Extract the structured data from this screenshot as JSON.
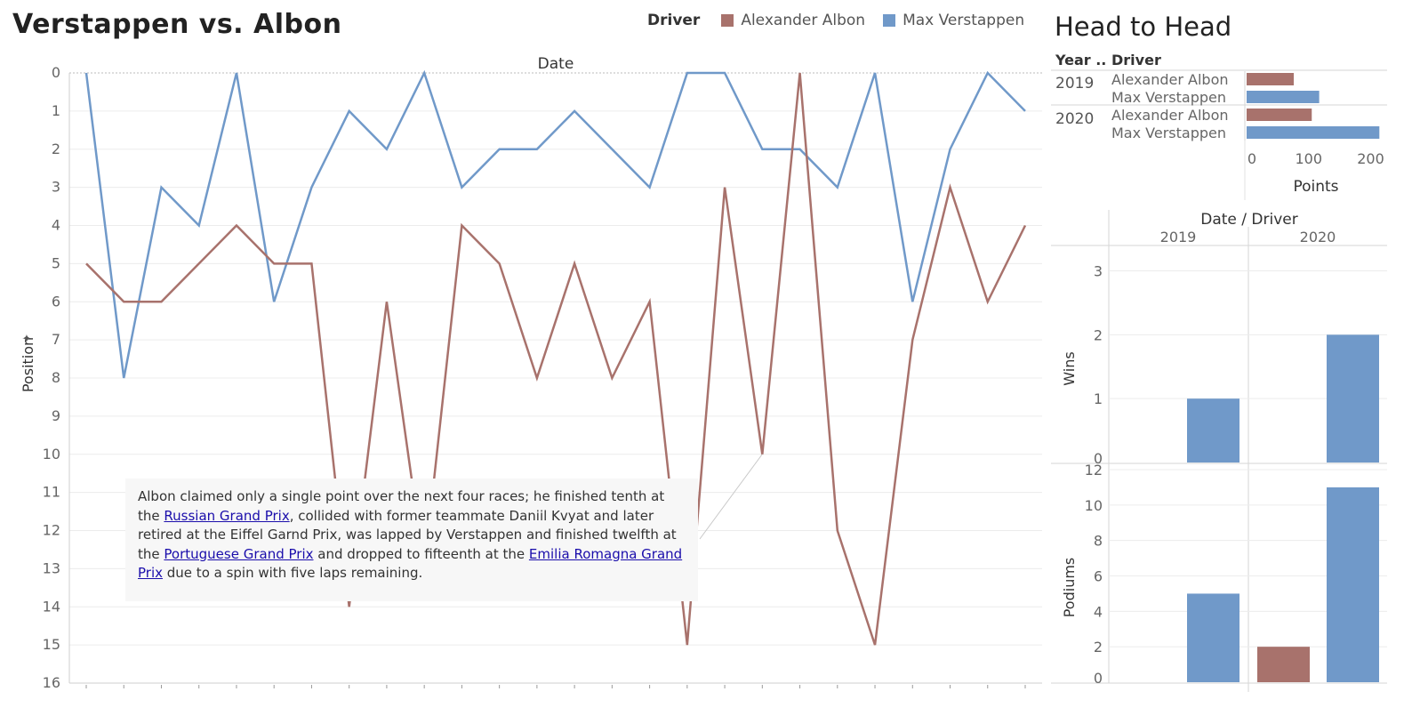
{
  "title": "Verstappen vs. Albon",
  "legend": {
    "title": "Driver",
    "items": [
      {
        "label": "Alexander Albon",
        "color": "#a8726c"
      },
      {
        "label": "Max Verstappen",
        "color": "#7099c9"
      }
    ]
  },
  "annotation": {
    "t1": "Albon claimed only a single point over the next four races; he finished tenth at the",
    "link1": "Russian Grand Prix",
    "t2": ", collided with former teammate Daniil Kvyat and later retired at the Eiffel Garnd Prix, was lapped by Verstappen and finished twelfth at the",
    "link2": "Portuguese Grand Prix",
    "t3": "and dropped to fifteenth at the",
    "link3": "Emilia Romagna Grand Prix",
    "t4": "due to a spin with five laps remaining."
  },
  "head_to_head_title": "Head to Head",
  "chart_data": [
    {
      "type": "line",
      "xlabel": "Date",
      "ylabel": "Position",
      "ylim": [
        0,
        16
      ],
      "y_inverted": true,
      "y_ticks": [
        0,
        1,
        2,
        3,
        4,
        5,
        6,
        7,
        8,
        9,
        10,
        11,
        12,
        13,
        14,
        15,
        16
      ],
      "x": [
        1,
        2,
        3,
        4,
        5,
        6,
        7,
        8,
        9,
        10,
        11,
        12,
        13,
        14,
        15,
        16,
        17,
        18,
        19,
        20,
        21,
        22,
        23,
        24,
        25,
        26
      ],
      "series": [
        {
          "name": "Max Verstappen",
          "color": "#7099c9",
          "values": [
            0,
            8,
            3,
            4,
            0,
            6,
            3,
            1,
            2,
            0,
            3,
            2,
            2,
            1,
            2,
            3,
            0,
            0,
            2,
            2,
            3,
            0,
            6,
            2,
            0,
            1
          ]
        },
        {
          "name": "Alexander Albon",
          "color": "#a8726c",
          "values": [
            5,
            6,
            6,
            5,
            4,
            5,
            5,
            14,
            6,
            13,
            4,
            5,
            8,
            5,
            8,
            6,
            15,
            3,
            10,
            0,
            12,
            15,
            7,
            3,
            6,
            4
          ]
        }
      ]
    },
    {
      "type": "bar",
      "orientation": "horizontal",
      "headers": [
        "Year ..",
        "Driver"
      ],
      "xlabel": "Points",
      "x_ticks": [
        0,
        100,
        200
      ],
      "xlim": [
        0,
        215
      ],
      "rows": [
        {
          "year": "2019",
          "driver": "Alexander Albon",
          "value": 76,
          "color": "#a8726c"
        },
        {
          "year": "",
          "driver": "Max Verstappen",
          "value": 117,
          "color": "#7099c9"
        },
        {
          "year": "2020",
          "driver": "Alexander Albon",
          "value": 105,
          "color": "#a8726c"
        },
        {
          "year": "",
          "driver": "Max Verstappen",
          "value": 214,
          "color": "#7099c9"
        }
      ]
    },
    {
      "type": "bar",
      "header": "Date / Driver",
      "categories": [
        "2019",
        "2020"
      ],
      "drivers": [
        "Alexander Albon",
        "Max Verstappen"
      ],
      "colors": [
        "#a8726c",
        "#7099c9"
      ],
      "panels": [
        {
          "ylabel": "Wins",
          "ylim": [
            0,
            3.3
          ],
          "y_ticks": [
            0,
            1,
            2,
            3
          ],
          "values": [
            [
              0,
              1
            ],
            [
              0,
              2
            ]
          ]
        },
        {
          "ylabel": "Podiums",
          "ylim": [
            0,
            12
          ],
          "y_ticks": [
            0,
            2,
            4,
            6,
            8,
            10,
            12
          ],
          "values": [
            [
              0,
              5
            ],
            [
              2,
              11
            ]
          ]
        }
      ]
    }
  ]
}
